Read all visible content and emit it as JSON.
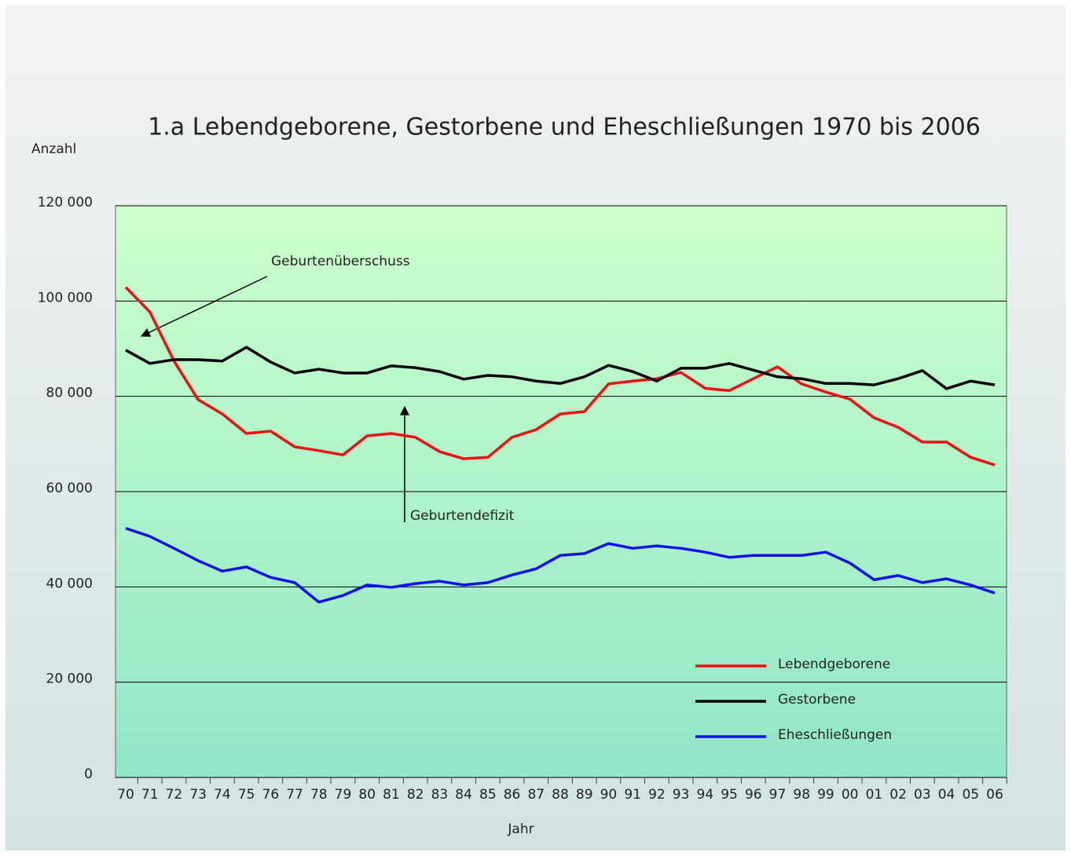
{
  "chart_data": {
    "type": "line",
    "title": "1.a Lebendgeborene, Gestorbene und Eheschließungen 1970 bis 2006",
    "ylabel": "Anzahl",
    "xlabel": "Jahr",
    "categories": [
      "70",
      "71",
      "72",
      "73",
      "74",
      "75",
      "76",
      "77",
      "78",
      "79",
      "80",
      "81",
      "82",
      "83",
      "84",
      "85",
      "86",
      "87",
      "88",
      "89",
      "90",
      "91",
      "92",
      "93",
      "94",
      "95",
      "96",
      "97",
      "98",
      "99",
      "00",
      "01",
      "02",
      "03",
      "04",
      "05",
      "06"
    ],
    "series": [
      {
        "name": "Lebendgeborene",
        "color": "#ee1111",
        "values": [
          102900,
          97700,
          87400,
          79300,
          76300,
          72200,
          72700,
          69400,
          68600,
          67700,
          71700,
          72200,
          71400,
          68400,
          66900,
          67200,
          71400,
          73000,
          76300,
          76800,
          82600,
          83200,
          83700,
          85000,
          81700,
          81200,
          83700,
          86200,
          82600,
          80900,
          79400,
          75500,
          73500,
          70400,
          70400,
          67200,
          65600
        ]
      },
      {
        "name": "Gestorbene",
        "color": "#000000",
        "values": [
          89700,
          86900,
          87700,
          87700,
          87400,
          90300,
          87200,
          84900,
          85700,
          84900,
          84900,
          86400,
          86000,
          85200,
          83600,
          84400,
          84100,
          83200,
          82700,
          84100,
          86500,
          85200,
          83200,
          85900,
          85900,
          86900,
          85500,
          84100,
          83700,
          82700,
          82700,
          82400,
          83700,
          85400,
          81600,
          83200,
          82400
        ]
      },
      {
        "name": "Eheschließungen",
        "color": "#1111ee",
        "values": [
          52300,
          50600,
          48100,
          45500,
          43300,
          44200,
          42000,
          40900,
          36800,
          38200,
          40400,
          39900,
          40700,
          41200,
          40400,
          40900,
          42500,
          43800,
          46600,
          47000,
          49100,
          48100,
          48600,
          48100,
          47300,
          46200,
          46600,
          46600,
          46600,
          47300,
          45000,
          41500,
          42400,
          40900,
          41700,
          40400,
          38700
        ]
      }
    ],
    "ylim": [
      0,
      120000
    ],
    "yticks": [
      0,
      {
        "value": 20000,
        "label": "20 000"
      },
      {
        "value": 40000,
        "label": "40 000"
      },
      {
        "value": 60000,
        "label": "60 000"
      },
      {
        "value": 80000,
        "label": "80 000"
      },
      {
        "value": 100000,
        "label": "100 000"
      },
      {
        "value": 120000,
        "label": "120 000"
      }
    ],
    "grid": true,
    "legend": "lower right",
    "annotations": [
      "Geburtenüberschuss",
      "Geburtendefizit"
    ]
  }
}
